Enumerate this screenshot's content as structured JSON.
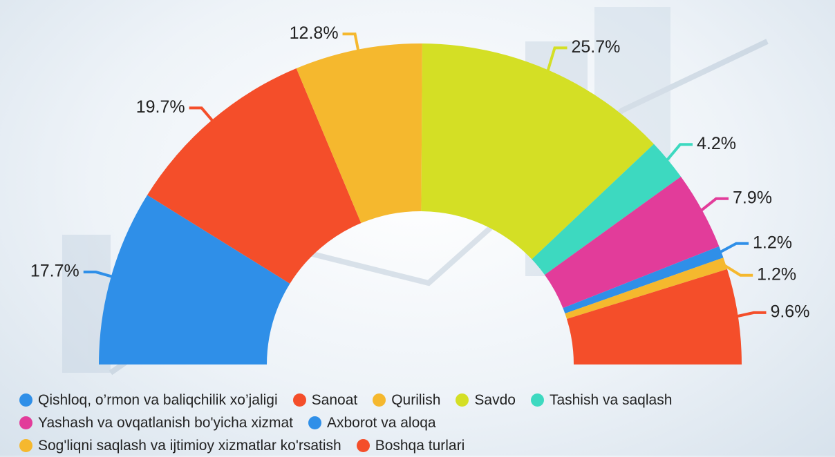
{
  "chart_data": {
    "type": "semi-donut",
    "categories": [
      "Qishloq, o’rmon va baliqchilik xo’jaligi",
      "Sanoat",
      "Qurilish",
      "Savdo",
      "Tashish va saqlash",
      "Yashash va ovqatlanish bo'yicha xizmat",
      "Axborot va aloqa",
      "Sog'liqni saqlash va ijtimioy xizmatlar ko'rsatish",
      "Boshqa turlari"
    ],
    "values": [
      17.7,
      19.7,
      12.8,
      25.7,
      4.2,
      7.9,
      1.2,
      1.2,
      9.6
    ],
    "value_labels": [
      "17.7%",
      "19.7%",
      "12.8%",
      "25.7%",
      "4.2%",
      "7.9%",
      "1.2%",
      "1.2%",
      "9.6%"
    ],
    "colors": [
      "#2f8fe8",
      "#f44e2a",
      "#f5b82e",
      "#d4df25",
      "#3dd9c0",
      "#e23c9a",
      "#2f8fe8",
      "#f5b82e",
      "#f44e2a"
    ]
  }
}
